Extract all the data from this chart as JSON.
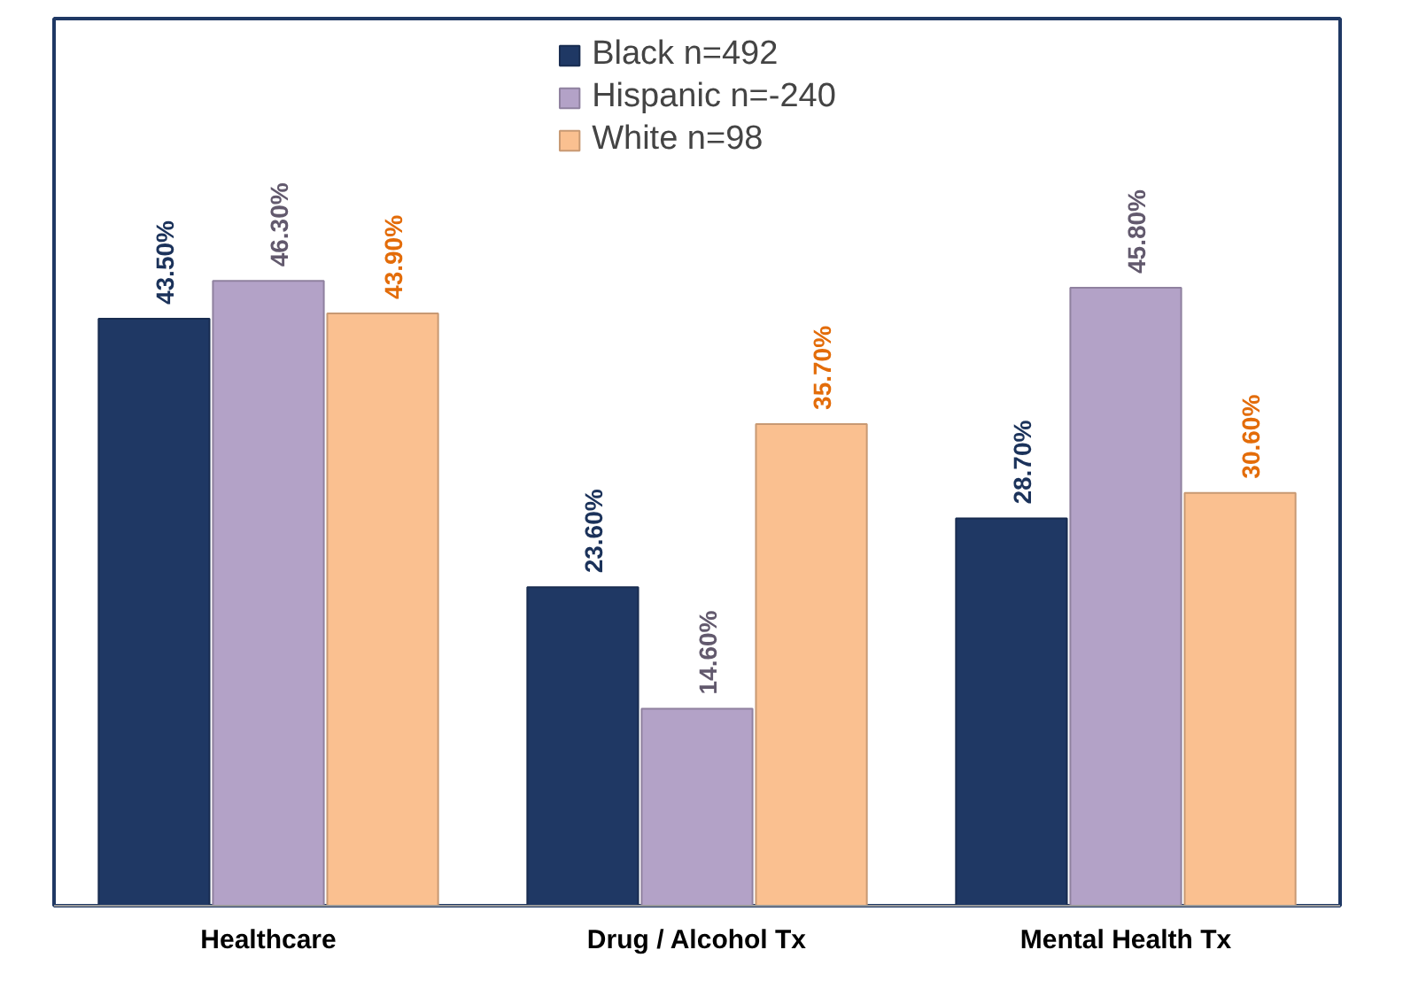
{
  "chart_data": {
    "type": "bar",
    "categories": [
      "Healthcare",
      "Drug / Alcohol Tx",
      "Mental Health Tx"
    ],
    "series": [
      {
        "name": "Black n=492",
        "color": "#1f3864",
        "values": [
          43.5,
          23.6,
          28.7
        ],
        "value_labels": [
          "43.50%",
          "23.60%",
          "28.70%"
        ]
      },
      {
        "name": "Hispanic n=-240",
        "color": "#b3a2c7",
        "values": [
          46.3,
          14.6,
          45.8
        ],
        "value_labels": [
          "46.30%",
          "14.60%",
          "45.80%"
        ]
      },
      {
        "name": "White n=98",
        "color": "#fac090",
        "values": [
          43.9,
          35.7,
          30.6
        ],
        "value_labels": [
          "43.90%",
          "35.70%",
          "30.60%"
        ]
      }
    ],
    "legend": "top",
    "grid": false
  }
}
